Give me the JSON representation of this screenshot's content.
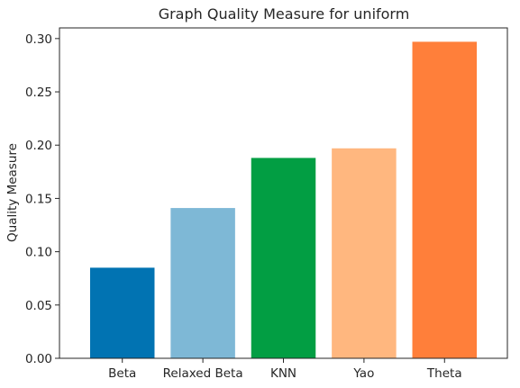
{
  "chart_data": {
    "type": "bar",
    "title": "Graph Quality Measure for uniform",
    "xlabel": "",
    "ylabel": "Quality Measure",
    "categories": [
      "Beta",
      "Relaxed Beta",
      "KNN",
      "Yao",
      "Theta"
    ],
    "values": [
      0.085,
      0.141,
      0.188,
      0.197,
      0.297
    ],
    "colors": [
      "#0173b2",
      "#7eb8d6",
      "#029e43",
      "#ffb77f",
      "#ff7f3a"
    ],
    "ylim": [
      0,
      0.31
    ],
    "yticks": [
      "0.00",
      "0.05",
      "0.10",
      "0.15",
      "0.20",
      "0.25",
      "0.30"
    ],
    "grid": false,
    "legend": "none"
  }
}
